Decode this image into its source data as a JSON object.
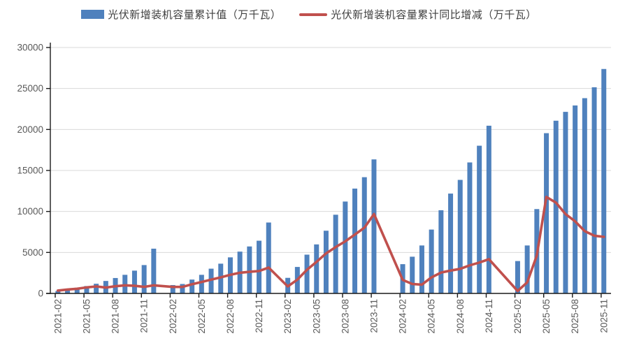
{
  "legend": {
    "items": [
      {
        "label": "光伏新增装机容量累计值（万千瓦）",
        "color": "#4F81BD",
        "marker": "bar-swatch"
      },
      {
        "label": "光伏新增装机容量累计同比增减（万千瓦）",
        "color": "#C0504D",
        "marker": "line-swatch"
      }
    ]
  },
  "chart_data": {
    "type": "bar",
    "title": "",
    "xlabel": "",
    "ylabel": "",
    "grid": true,
    "legend_position": "top",
    "ylim": [
      0,
      30000
    ],
    "y_axis": {
      "min": 0,
      "max": 30000,
      "step": 5000,
      "tick_labels": [
        "0",
        "5000",
        "10000",
        "15000",
        "20000",
        "25000",
        "30000"
      ]
    },
    "x_label_interval": 3,
    "x_tick_labels": [
      "2021-02",
      "2021-05",
      "2021-08",
      "2021-11",
      "2022-02",
      "2022-05",
      "2022-08",
      "2022-11",
      "2023-02",
      "2023-05",
      "2023-08",
      "2023-11",
      "2024-02",
      "2024-05",
      "2024-08",
      "2024-11",
      "2025-02",
      "2025-05",
      "2025-08",
      "2025-11"
    ],
    "categories": [
      "2021-02",
      "2021-03",
      "2021-04",
      "2021-05",
      "2021-06",
      "2021-07",
      "2021-08",
      "2021-09",
      "2021-10",
      "2021-11",
      "2021-12",
      "2022-01",
      "2022-02",
      "2022-03",
      "2022-04",
      "2022-05",
      "2022-06",
      "2022-07",
      "2022-08",
      "2022-09",
      "2022-10",
      "2022-11",
      "2022-12",
      "2023-01",
      "2023-02",
      "2023-03",
      "2023-04",
      "2023-05",
      "2023-06",
      "2023-07",
      "2023-08",
      "2023-09",
      "2023-10",
      "2023-11",
      "2023-12",
      "2024-01",
      "2024-02",
      "2024-03",
      "2024-04",
      "2024-05",
      "2024-06",
      "2024-07",
      "2024-08",
      "2024-09",
      "2024-10",
      "2024-11",
      "2024-12",
      "2025-01",
      "2025-02",
      "2025-03",
      "2025-04",
      "2025-05",
      "2025-06",
      "2025-07",
      "2025-08",
      "2025-09",
      "2025-10",
      "2025-11"
    ],
    "series": [
      {
        "name": "光伏新增装机容量累计值（万千瓦）",
        "type": "bar",
        "color": "#4F81BD",
        "values": [
          300,
          570,
          690,
          900,
          1180,
          1520,
          1880,
          2270,
          2780,
          3460,
          5460,
          null,
          1020,
          1150,
          1690,
          2270,
          3020,
          3630,
          4400,
          5100,
          5730,
          6430,
          8650,
          null,
          1900,
          3230,
          4730,
          5980,
          7650,
          9600,
          11210,
          12790,
          14180,
          16350,
          null,
          null,
          3570,
          4480,
          5850,
          7790,
          10150,
          12180,
          13850,
          15980,
          18020,
          20460,
          null,
          null,
          3950,
          5850,
          10290,
          19550,
          21070,
          22150,
          22930,
          23820,
          25150,
          27380
        ]
      },
      {
        "name": "光伏新增装机容量累计同比增减（万千瓦）",
        "type": "line",
        "color": "#C0504D",
        "values": [
          350,
          480,
          570,
          730,
          850,
          720,
          880,
          990,
          930,
          800,
          990,
          null,
          790,
          790,
          1120,
          1400,
          1680,
          1960,
          2270,
          2520,
          2630,
          2740,
          3150,
          null,
          850,
          1680,
          2880,
          3850,
          4880,
          5650,
          6350,
          7180,
          8020,
          9680,
          null,
          null,
          1650,
          1150,
          1070,
          1950,
          2550,
          2790,
          3000,
          3430,
          3770,
          4180,
          null,
          null,
          300,
          1350,
          4600,
          11770,
          11070,
          9680,
          8800,
          7600,
          7040,
          6900
        ]
      }
    ],
    "colors": {
      "bar": "#4F81BD",
      "line": "#C0504D",
      "grid": "#D9D9D9",
      "axis": "#1a1a1a",
      "tick_text": "#595959"
    }
  }
}
